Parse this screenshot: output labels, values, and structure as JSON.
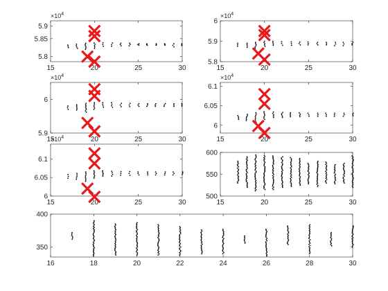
{
  "figure": {
    "background": "#ffffff",
    "axis_color": "#262626",
    "marker_color": "#000000",
    "cross_color": "#e8191b"
  },
  "chart_data": [
    {
      "type": "scatter",
      "xlim": [
        15,
        30
      ],
      "ylim": [
        57600,
        59200
      ],
      "xticks": [
        "15",
        "20",
        "25",
        "30"
      ],
      "yticks": [
        {
          "value": 57800,
          "label": "5.8"
        },
        {
          "value": 58500,
          "label": "5.85"
        },
        {
          "value": 59000,
          "label": "5.9"
        }
      ],
      "exponent": "×10^4",
      "clusters": [
        {
          "x": 17,
          "y0": 58150,
          "y1": 58250
        },
        {
          "x": 18,
          "y0": 58120,
          "y1": 58280
        },
        {
          "x": 19,
          "y0": 58080,
          "y1": 58320
        },
        {
          "x": 20,
          "y0": 58120,
          "y1": 58330
        },
        {
          "x": 21,
          "y0": 58200,
          "y1": 58340
        },
        {
          "x": 22,
          "y0": 58200,
          "y1": 58330
        },
        {
          "x": 23,
          "y0": 58220,
          "y1": 58320
        },
        {
          "x": 24,
          "y0": 58220,
          "y1": 58320
        },
        {
          "x": 25,
          "y0": 58240,
          "y1": 58300
        },
        {
          "x": 26,
          "y0": 58240,
          "y1": 58300
        },
        {
          "x": 27,
          "y0": 58240,
          "y1": 58300
        },
        {
          "x": 28,
          "y0": 58240,
          "y1": 58300
        },
        {
          "x": 29,
          "y0": 58180,
          "y1": 58300
        },
        {
          "x": 30,
          "y0": 58230,
          "y1": 58300
        }
      ],
      "crosses": [
        {
          "x": 20,
          "y": 58600
        },
        {
          "x": 20,
          "y": 58800
        },
        {
          "x": 19.2,
          "y": 57800
        },
        {
          "x": 20,
          "y": 57600
        }
      ]
    },
    {
      "type": "scatter",
      "xlim": [
        15,
        30
      ],
      "ylim": [
        58000,
        60000
      ],
      "xticks": [
        "15",
        "20",
        "25",
        "30"
      ],
      "yticks": [
        {
          "value": 58000,
          "label": "5.8"
        },
        {
          "value": 59000,
          "label": "5.9"
        },
        {
          "value": 60000,
          "label": "6"
        }
      ],
      "exponent": "×10^4",
      "clusters": [
        {
          "x": 17,
          "y0": 58750,
          "y1": 58900
        },
        {
          "x": 18,
          "y0": 58700,
          "y1": 58900
        },
        {
          "x": 19,
          "y0": 58650,
          "y1": 58950
        },
        {
          "x": 20,
          "y0": 58750,
          "y1": 59000
        },
        {
          "x": 21,
          "y0": 58800,
          "y1": 59000
        },
        {
          "x": 22,
          "y0": 58800,
          "y1": 58980
        },
        {
          "x": 23,
          "y0": 58800,
          "y1": 58970
        },
        {
          "x": 24,
          "y0": 58820,
          "y1": 58960
        },
        {
          "x": 25,
          "y0": 58820,
          "y1": 58960
        },
        {
          "x": 26,
          "y0": 58820,
          "y1": 58950
        },
        {
          "x": 27,
          "y0": 58820,
          "y1": 58950
        },
        {
          "x": 28,
          "y0": 58780,
          "y1": 58950
        },
        {
          "x": 29,
          "y0": 58780,
          "y1": 58950
        },
        {
          "x": 30,
          "y0": 58820,
          "y1": 58950
        }
      ],
      "crosses": [
        {
          "x": 20,
          "y": 59500
        },
        {
          "x": 20,
          "y": 59300
        },
        {
          "x": 19.3,
          "y": 58400
        },
        {
          "x": 20,
          "y": 58100
        }
      ]
    },
    {
      "type": "scatter",
      "xlim": [
        15,
        30
      ],
      "ylim": [
        59000,
        60500
      ],
      "xticks": [
        "15",
        "20",
        "25",
        "30"
      ],
      "yticks": [
        {
          "value": 59000,
          "label": "5.9"
        },
        {
          "value": 60000,
          "label": "6"
        }
      ],
      "exponent": "×10^4",
      "clusters": [
        {
          "x": 17,
          "y0": 59700,
          "y1": 59800
        },
        {
          "x": 18,
          "y0": 59680,
          "y1": 59840
        },
        {
          "x": 19,
          "y0": 59620,
          "y1": 59880
        },
        {
          "x": 20,
          "y0": 59700,
          "y1": 59900
        },
        {
          "x": 21,
          "y0": 59760,
          "y1": 59900
        },
        {
          "x": 22,
          "y0": 59760,
          "y1": 59900
        },
        {
          "x": 23,
          "y0": 59780,
          "y1": 59880
        },
        {
          "x": 24,
          "y0": 59780,
          "y1": 59880
        },
        {
          "x": 25,
          "y0": 59790,
          "y1": 59870
        },
        {
          "x": 26,
          "y0": 59790,
          "y1": 59870
        },
        {
          "x": 27,
          "y0": 59790,
          "y1": 59870
        },
        {
          "x": 28,
          "y0": 59790,
          "y1": 59870
        },
        {
          "x": 29,
          "y0": 59790,
          "y1": 59870
        },
        {
          "x": 30,
          "y0": 59800,
          "y1": 59870
        }
      ],
      "crosses": [
        {
          "x": 20,
          "y": 60300
        },
        {
          "x": 20,
          "y": 60100
        },
        {
          "x": 19.2,
          "y": 59300
        },
        {
          "x": 20,
          "y": 59050
        }
      ]
    },
    {
      "type": "scatter",
      "xlim": [
        15,
        30
      ],
      "ylim": [
        59800,
        61100
      ],
      "xticks": [
        "15",
        "20",
        "25",
        "30"
      ],
      "yticks": [
        {
          "value": 60000,
          "label": "6"
        },
        {
          "value": 60500,
          "label": "6.05"
        },
        {
          "value": 61000,
          "label": "6.1"
        }
      ],
      "exponent": "×10^4",
      "clusters": [
        {
          "x": 17,
          "y0": 60150,
          "y1": 60250
        },
        {
          "x": 18,
          "y0": 60120,
          "y1": 60280
        },
        {
          "x": 19,
          "y0": 60080,
          "y1": 60320
        },
        {
          "x": 20,
          "y0": 60150,
          "y1": 60350
        },
        {
          "x": 21,
          "y0": 60200,
          "y1": 60340
        },
        {
          "x": 22,
          "y0": 60200,
          "y1": 60330
        },
        {
          "x": 23,
          "y0": 60220,
          "y1": 60320
        },
        {
          "x": 24,
          "y0": 60220,
          "y1": 60320
        },
        {
          "x": 25,
          "y0": 60230,
          "y1": 60310
        },
        {
          "x": 26,
          "y0": 60230,
          "y1": 60310
        },
        {
          "x": 27,
          "y0": 60230,
          "y1": 60310
        },
        {
          "x": 28,
          "y0": 60230,
          "y1": 60310
        },
        {
          "x": 29,
          "y0": 60230,
          "y1": 60310
        },
        {
          "x": 30,
          "y0": 60240,
          "y1": 60310
        }
      ],
      "crosses": [
        {
          "x": 20,
          "y": 60800
        },
        {
          "x": 20,
          "y": 60550
        },
        {
          "x": 19.3,
          "y": 59980
        },
        {
          "x": 20,
          "y": 59800
        }
      ]
    },
    {
      "type": "scatter",
      "xlim": [
        15,
        30
      ],
      "ylim": [
        60000,
        61400
      ],
      "xticks": [
        "15",
        "20",
        "25",
        "30"
      ],
      "yticks": [
        {
          "value": 60000,
          "label": "6"
        },
        {
          "value": 60500,
          "label": "6.05"
        },
        {
          "value": 61000,
          "label": "6.1"
        }
      ],
      "exponent": "×10^4",
      "clusters": [
        {
          "x": 17,
          "y0": 60480,
          "y1": 60580
        },
        {
          "x": 18,
          "y0": 60450,
          "y1": 60610
        },
        {
          "x": 19,
          "y0": 60400,
          "y1": 60650
        },
        {
          "x": 20,
          "y0": 60480,
          "y1": 60680
        },
        {
          "x": 21,
          "y0": 60540,
          "y1": 60680
        },
        {
          "x": 22,
          "y0": 60540,
          "y1": 60670
        },
        {
          "x": 23,
          "y0": 60560,
          "y1": 60660
        },
        {
          "x": 24,
          "y0": 60560,
          "y1": 60660
        },
        {
          "x": 25,
          "y0": 60570,
          "y1": 60650
        },
        {
          "x": 26,
          "y0": 60570,
          "y1": 60650
        },
        {
          "x": 27,
          "y0": 60570,
          "y1": 60650
        },
        {
          "x": 28,
          "y0": 60570,
          "y1": 60650
        },
        {
          "x": 29,
          "y0": 60570,
          "y1": 60650
        },
        {
          "x": 30,
          "y0": 60580,
          "y1": 60650
        }
      ],
      "crosses": [
        {
          "x": 20,
          "y": 61150
        },
        {
          "x": 20,
          "y": 60880
        },
        {
          "x": 19.2,
          "y": 60200
        },
        {
          "x": 20,
          "y": 59980
        }
      ]
    },
    {
      "type": "scatter",
      "xlim": [
        15,
        30
      ],
      "ylim": [
        500,
        600
      ],
      "xticks": [
        "15",
        "20",
        "25",
        "30"
      ],
      "yticks": [
        {
          "value": 500,
          "label": "500"
        },
        {
          "value": 550,
          "label": "550"
        },
        {
          "value": 600,
          "label": "600"
        }
      ],
      "exponent": "",
      "clusters": [
        {
          "x": 17,
          "y0": 530,
          "y1": 580
        },
        {
          "x": 18,
          "y0": 520,
          "y1": 590
        },
        {
          "x": 19,
          "y0": 512,
          "y1": 594
        },
        {
          "x": 20,
          "y0": 515,
          "y1": 593
        },
        {
          "x": 21,
          "y0": 515,
          "y1": 592
        },
        {
          "x": 22,
          "y0": 520,
          "y1": 590
        },
        {
          "x": 23,
          "y0": 522,
          "y1": 588
        },
        {
          "x": 24,
          "y0": 525,
          "y1": 586
        },
        {
          "x": 25,
          "y0": 528,
          "y1": 575
        },
        {
          "x": 26,
          "y0": 522,
          "y1": 580
        },
        {
          "x": 27,
          "y0": 530,
          "y1": 578
        },
        {
          "x": 28,
          "y0": 528,
          "y1": 572
        },
        {
          "x": 29,
          "y0": 530,
          "y1": 575
        },
        {
          "x": 30,
          "y0": 520,
          "y1": 592
        }
      ],
      "crosses": []
    },
    {
      "type": "scatter",
      "xlim": [
        16,
        30
      ],
      "ylim": [
        335,
        400
      ],
      "xticks": [
        "16",
        "18",
        "20",
        "22",
        "24",
        "26",
        "28",
        "30"
      ],
      "yticks": [
        {
          "value": 350,
          "label": "350"
        },
        {
          "value": 400,
          "label": "400"
        }
      ],
      "exponent": "",
      "clusters": [
        {
          "x": 17,
          "y0": 362,
          "y1": 372
        },
        {
          "x": 18,
          "y0": 337,
          "y1": 390
        },
        {
          "x": 19,
          "y0": 338,
          "y1": 385
        },
        {
          "x": 20,
          "y0": 338,
          "y1": 387
        },
        {
          "x": 21,
          "y0": 338,
          "y1": 384
        },
        {
          "x": 22,
          "y0": 338,
          "y1": 381
        },
        {
          "x": 23,
          "y0": 340,
          "y1": 376
        },
        {
          "x": 24,
          "y0": 340,
          "y1": 377
        },
        {
          "x": 25,
          "y0": 356,
          "y1": 367
        },
        {
          "x": 26,
          "y0": 337,
          "y1": 377
        },
        {
          "x": 27,
          "y0": 354,
          "y1": 382
        },
        {
          "x": 28,
          "y0": 340,
          "y1": 384
        },
        {
          "x": 29,
          "y0": 352,
          "y1": 372
        },
        {
          "x": 30,
          "y0": 350,
          "y1": 382
        }
      ],
      "crosses": []
    }
  ]
}
